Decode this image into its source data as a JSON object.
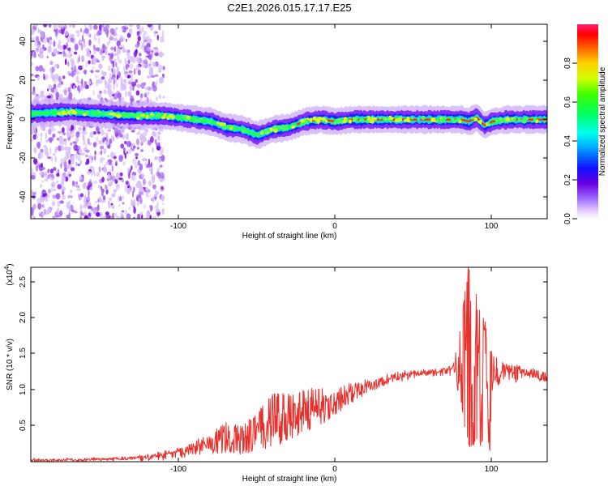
{
  "title": "C2E1.2026.015.17.17.E25",
  "top_panel": {
    "type": "heatmap",
    "xlabel": "Height of straight line (km)",
    "ylabel": "Frequency (Hz)",
    "x_ticks": [
      "-100",
      "0",
      "100"
    ],
    "y_ticks": [
      "40",
      "20",
      "0",
      "-20",
      "-40"
    ],
    "colorbar_label": "Normalized spectral amplitude",
    "colorbar_ticks": [
      "0.0",
      "0.2",
      "0.4",
      "0.6",
      "0.8"
    ]
  },
  "bottom_panel": {
    "type": "line",
    "xlabel": "Height of straight line (km)",
    "ylabel": "SNR (10 * v/v)",
    "scale_label": "(x10",
    "scale_exp": "4",
    "scale_close": ")",
    "x_ticks": [
      "-100",
      "0",
      "100"
    ],
    "y_ticks": [
      "0.5",
      "1.0",
      "1.5",
      "2.0",
      "2.5"
    ],
    "color": "#e8302c"
  },
  "chart_data": [
    {
      "type": "heatmap",
      "title": "C2E1.2026.015.17.17.E25",
      "xlabel": "Height of straight line (km)",
      "ylabel": "Frequency (Hz)",
      "xlim": [
        -195,
        135
      ],
      "ylim": [
        -50,
        50
      ],
      "colorbar_range": [
        0.0,
        1.0
      ],
      "dominant_frequency_track": {
        "x": [
          -195,
          -170,
          -150,
          -130,
          -110,
          -90,
          -80,
          -70,
          -60,
          -50,
          -40,
          -30,
          -20,
          -10,
          0,
          10,
          30,
          60,
          80,
          85,
          90,
          95,
          100,
          110,
          135
        ],
        "y": [
          4,
          5,
          4,
          3,
          3,
          1,
          0,
          -3,
          -4,
          -7,
          -4,
          -3,
          0,
          1,
          0,
          1,
          1,
          1,
          1,
          0,
          2,
          -2,
          0,
          1,
          1
        ]
      },
      "noise_region_x": [
        -195,
        -120
      ]
    },
    {
      "type": "line",
      "xlabel": "Height of straight line (km)",
      "ylabel": "SNR (10 * v/v)",
      "y_scale_factor": 10000,
      "xlim": [
        -195,
        135
      ],
      "ylim": [
        0,
        2.7
      ],
      "series": [
        {
          "name": "SNR",
          "x": [
            -195,
            -150,
            -130,
            -110,
            -100,
            -90,
            -80,
            -70,
            -60,
            -50,
            -40,
            -30,
            -20,
            -10,
            0,
            10,
            20,
            30,
            40,
            50,
            60,
            70,
            75,
            80,
            82,
            85,
            88,
            90,
            93,
            95,
            98,
            100,
            105,
            110,
            115,
            120,
            125,
            130,
            135
          ],
          "y": [
            0.02,
            0.03,
            0.05,
            0.1,
            0.15,
            0.2,
            0.25,
            0.3,
            0.35,
            0.4,
            0.5,
            0.6,
            0.7,
            0.75,
            0.85,
            0.95,
            1.05,
            1.12,
            1.18,
            1.22,
            1.25,
            1.27,
            1.3,
            1.2,
            1.8,
            2.7,
            0.6,
            2.0,
            0.9,
            1.9,
            0.3,
            1.2,
            1.25,
            1.3,
            1.28,
            1.25,
            1.22,
            1.2,
            1.15
          ],
          "envelope_max": [
            0.05,
            0.06,
            0.08,
            0.15,
            0.2,
            0.3,
            0.4,
            0.55,
            0.5,
            0.7,
            0.95,
            0.95,
            1.0,
            1.05,
            1.05,
            1.1,
            1.15,
            1.22,
            1.26,
            1.28,
            1.3,
            1.32,
            1.35,
            1.9,
            2.3,
            2.7,
            2.5,
            2.3,
            2.0,
            2.0,
            1.6,
            1.5,
            1.4,
            1.35,
            1.35,
            1.32,
            1.3,
            1.28,
            1.25
          ],
          "envelope_min": [
            0.0,
            0.0,
            0.0,
            0.02,
            0.05,
            0.08,
            0.1,
            0.12,
            0.1,
            0.15,
            0.2,
            0.3,
            0.4,
            0.5,
            0.65,
            0.8,
            0.95,
            1.05,
            1.1,
            1.15,
            1.18,
            1.2,
            1.2,
            0.8,
            0.5,
            0.2,
            0.2,
            0.3,
            0.2,
            0.5,
            0.15,
            0.9,
            1.1,
            1.15,
            1.1,
            1.15,
            1.15,
            1.12,
            1.1
          ]
        }
      ]
    }
  ]
}
